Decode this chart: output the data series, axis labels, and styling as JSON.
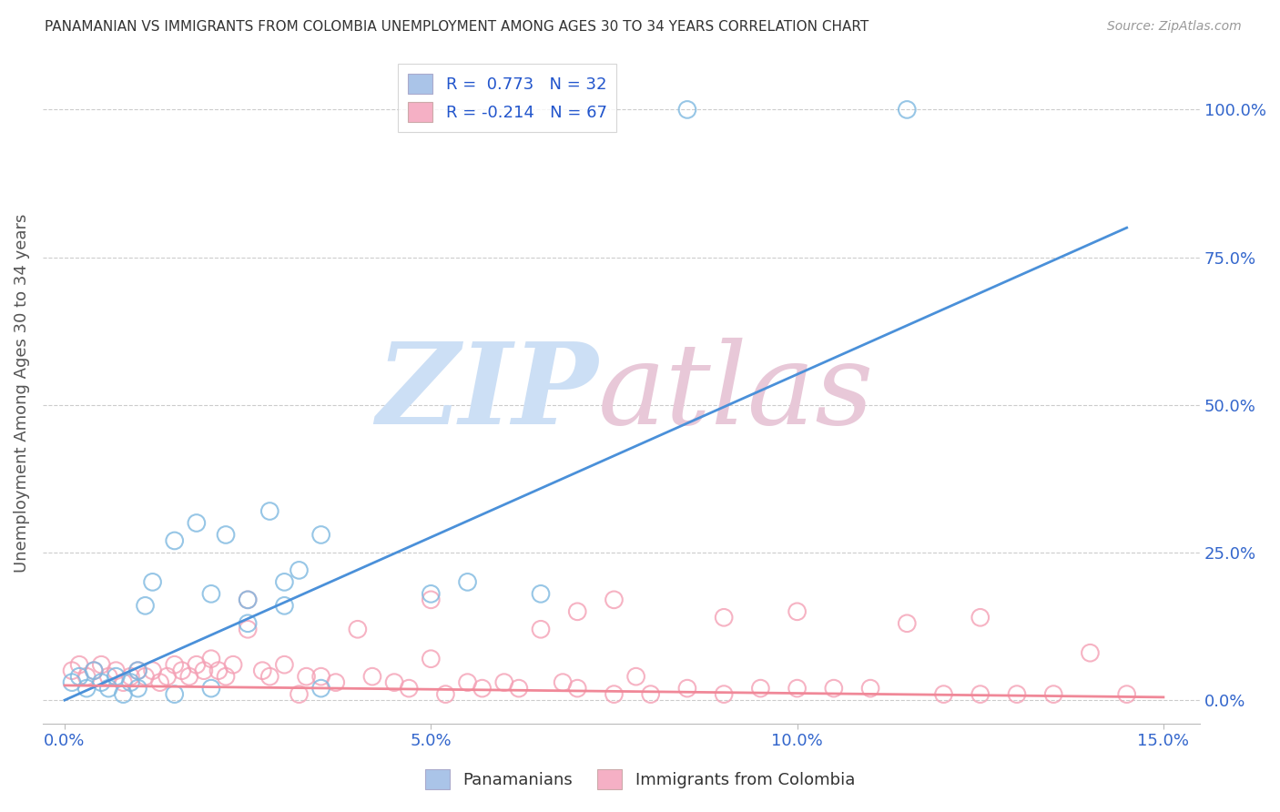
{
  "title": "PANAMANIAN VS IMMIGRANTS FROM COLOMBIA UNEMPLOYMENT AMONG AGES 30 TO 34 YEARS CORRELATION CHART",
  "source": "Source: ZipAtlas.com",
  "ylabel_label": "Unemployment Among Ages 30 to 34 years",
  "xlim": [
    0.0,
    0.15
  ],
  "ylim": [
    0.0,
    1.0
  ],
  "blue_scatter": {
    "x": [
      0.001,
      0.002,
      0.003,
      0.004,
      0.005,
      0.006,
      0.007,
      0.008,
      0.009,
      0.01,
      0.011,
      0.012,
      0.015,
      0.018,
      0.02,
      0.022,
      0.025,
      0.028,
      0.03,
      0.032,
      0.035,
      0.05,
      0.055,
      0.065,
      0.085,
      0.115,
      0.01,
      0.015,
      0.02,
      0.025,
      0.03,
      0.035
    ],
    "y": [
      0.03,
      0.04,
      0.02,
      0.05,
      0.03,
      0.02,
      0.04,
      0.01,
      0.03,
      0.05,
      0.16,
      0.2,
      0.27,
      0.3,
      0.18,
      0.28,
      0.17,
      0.32,
      0.2,
      0.22,
      0.28,
      0.18,
      0.2,
      0.18,
      1.0,
      1.0,
      0.02,
      0.01,
      0.02,
      0.13,
      0.16,
      0.02
    ]
  },
  "pink_scatter": {
    "x": [
      0.001,
      0.002,
      0.003,
      0.004,
      0.005,
      0.006,
      0.007,
      0.008,
      0.009,
      0.01,
      0.011,
      0.012,
      0.013,
      0.014,
      0.015,
      0.016,
      0.017,
      0.018,
      0.019,
      0.02,
      0.021,
      0.022,
      0.023,
      0.025,
      0.027,
      0.028,
      0.03,
      0.032,
      0.033,
      0.035,
      0.037,
      0.04,
      0.042,
      0.045,
      0.047,
      0.05,
      0.052,
      0.055,
      0.057,
      0.06,
      0.062,
      0.065,
      0.068,
      0.07,
      0.075,
      0.078,
      0.08,
      0.085,
      0.09,
      0.095,
      0.1,
      0.105,
      0.11,
      0.115,
      0.12,
      0.125,
      0.13,
      0.135,
      0.14,
      0.145,
      0.025,
      0.05,
      0.075,
      0.1,
      0.125,
      0.07,
      0.09
    ],
    "y": [
      0.05,
      0.06,
      0.04,
      0.05,
      0.06,
      0.04,
      0.05,
      0.03,
      0.04,
      0.05,
      0.04,
      0.05,
      0.03,
      0.04,
      0.06,
      0.05,
      0.04,
      0.06,
      0.05,
      0.07,
      0.05,
      0.04,
      0.06,
      0.12,
      0.05,
      0.04,
      0.06,
      0.01,
      0.04,
      0.04,
      0.03,
      0.12,
      0.04,
      0.03,
      0.02,
      0.07,
      0.01,
      0.03,
      0.02,
      0.03,
      0.02,
      0.12,
      0.03,
      0.02,
      0.01,
      0.04,
      0.01,
      0.02,
      0.01,
      0.02,
      0.02,
      0.02,
      0.02,
      0.13,
      0.01,
      0.01,
      0.01,
      0.01,
      0.08,
      0.01,
      0.17,
      0.17,
      0.17,
      0.15,
      0.14,
      0.15,
      0.14
    ]
  },
  "blue_line": {
    "x": [
      0.0,
      0.145
    ],
    "y": [
      0.0,
      0.8
    ]
  },
  "pink_line": {
    "x": [
      0.0,
      0.15
    ],
    "y": [
      0.025,
      0.005
    ]
  },
  "blue_color": "#7db8e0",
  "pink_color": "#f4a0b5",
  "blue_line_color": "#4a90d9",
  "pink_line_color": "#f08898",
  "grid_color": "#cccccc",
  "title_color": "#333333",
  "axis_label_color": "#555555",
  "tick_color": "#3366cc",
  "legend_r1": "R =  0.773   N = 32",
  "legend_r2": "R = -0.214   N = 67",
  "legend_color1": "#aac4e8",
  "legend_color2": "#f5b0c5"
}
